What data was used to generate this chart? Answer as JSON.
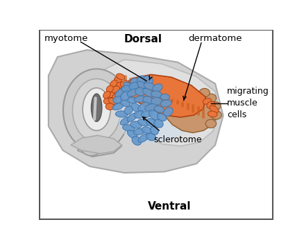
{
  "bg_color": "#ffffff",
  "border_color": "#555555",
  "title_dorsal": "Dorsal",
  "title_ventral": "Ventral",
  "label_myotome": "myotome",
  "label_dermatome": "dermatome",
  "label_sclerotome": "sclerotome",
  "label_migrating": "migrating\nmuscle\ncells",
  "outer_body_color": "#c8c8c8",
  "outer_body_edge": "#aaaaaa",
  "inner_fold_color": "#d8d8d8",
  "neural_tube_outer": "#c0c0c0",
  "neural_tube_mid": "#b8b8b8",
  "neural_tube_inner_color": "#e8e8e8",
  "lumen_color": "#888888",
  "notochord_color": "#b5b5b5",
  "dermatome_color": "#c8956c",
  "dermatome_edge": "#8B5A2B",
  "myotome_color": "#e8763a",
  "myotome_stripe": "#cc5c1a",
  "mig_cell_color": "#e8763a",
  "mig_cell_edge": "#b04010",
  "blue_cell_color": "#6699cc",
  "blue_cell_edge": "#4477aa",
  "scler_bg_color": "#c8ddf0",
  "flap_color": "#d0d0d0",
  "flap_edge": "#aaaaaa"
}
